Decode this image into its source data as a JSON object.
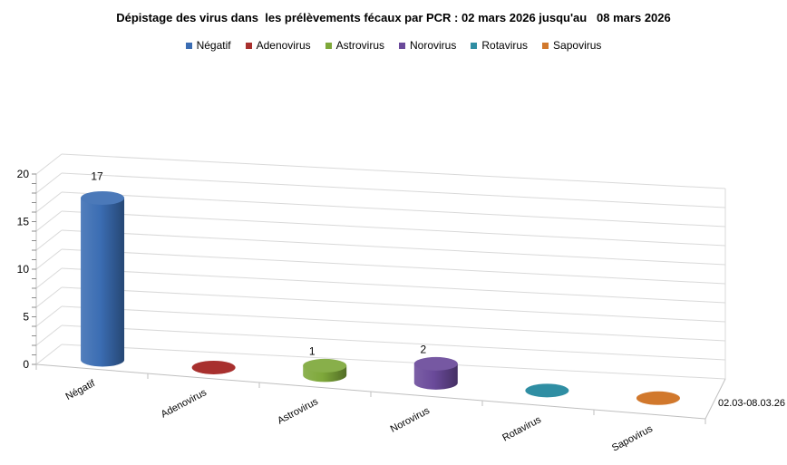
{
  "chart_data": {
    "type": "bar",
    "title": "Dépistage des virus dans  les prélèvements fécaux par PCR : 02 mars 2026 jusqu'au   08 mars 2026",
    "categories": [
      "Négatif",
      "Adenovirus",
      "Astrovirus",
      "Norovirus",
      "Rotavirus",
      "Sapovirus"
    ],
    "series_axis_label": "02.03-08.03.26",
    "values": [
      17,
      0,
      1,
      2,
      0,
      0
    ],
    "data_labels": [
      "17",
      "",
      "1",
      "2",
      "",
      ""
    ],
    "colors": [
      "#3b6db3",
      "#a8302e",
      "#7ea83a",
      "#6a4a9a",
      "#2f8ea3",
      "#d1782c"
    ],
    "ylim": [
      0,
      20
    ],
    "yticks": [
      0,
      5,
      10,
      15,
      20
    ],
    "grid": true,
    "legend_position": "top",
    "style": "3d-cylinder"
  }
}
